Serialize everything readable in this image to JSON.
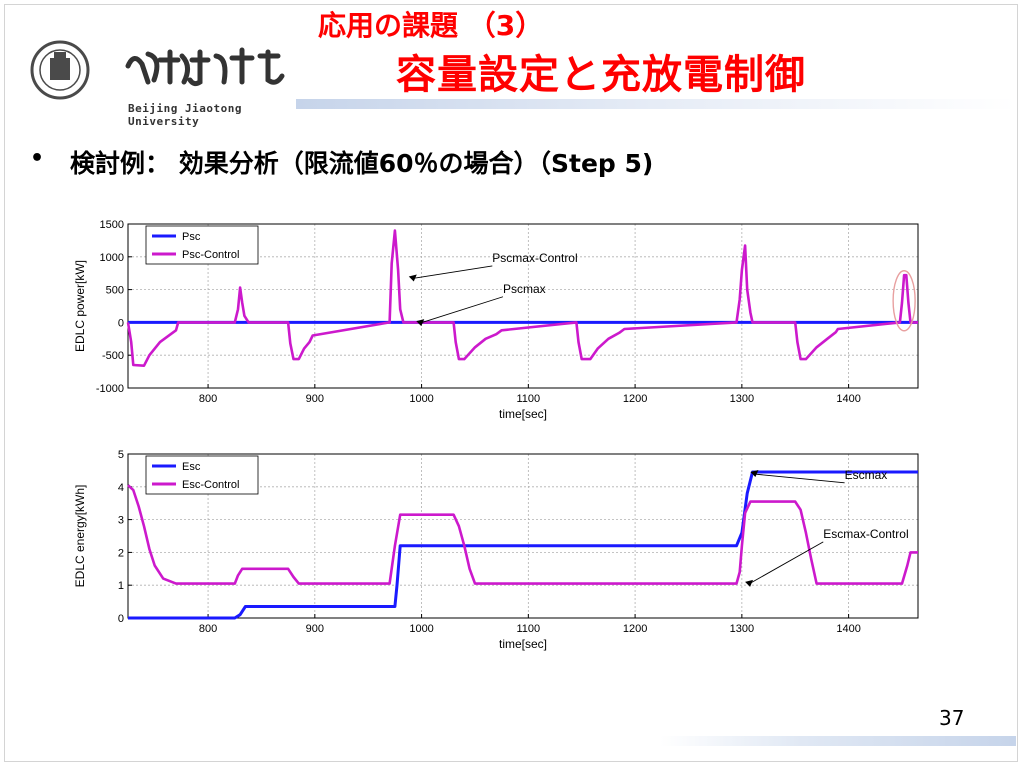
{
  "slide": {
    "title_line1": "応用の課題 （3）",
    "title_line2": "容量設定と充放電制御",
    "university_en": "Beijing Jiaotong University",
    "bullet_symbol": "•",
    "bullet_text": "検討例： 効果分析（限流値60％の場合）（Step 5)",
    "page_number": "37"
  },
  "colors": {
    "title": "#ff0000",
    "series_blue": "#1a1aff",
    "series_magenta": "#cc19cc",
    "highlight_ellipse": "#e8a0a0"
  },
  "icons": {
    "logo": "beijing-jiaotong-university-logo"
  },
  "chart_data": [
    {
      "type": "line",
      "xlabel": "time[sec]",
      "ylabel": "EDLC power[kW]",
      "xlim": [
        725,
        1465
      ],
      "ylim": [
        -1000,
        1500
      ],
      "xticks": [
        800,
        900,
        1000,
        1100,
        1200,
        1300,
        1400
      ],
      "yticks": [
        -1000,
        -500,
        0,
        500,
        1000,
        1500
      ],
      "grid": true,
      "legend_position": "top-left",
      "annotations": [
        {
          "text": "Pscmax-Control",
          "x": 1070,
          "y": 800
        },
        {
          "text": "Pscmax",
          "x": 1080,
          "y": 330
        }
      ],
      "series": [
        {
          "name": "Psc",
          "color": "#1a1aff",
          "x": [
            725,
            770,
            770,
            875,
            875,
            900,
            900,
            1030,
            1030,
            1080,
            1080,
            1140,
            1140,
            1195,
            1195,
            1350,
            1350,
            1395,
            1395,
            1465
          ],
          "y": [
            0,
            0,
            0,
            0,
            0,
            0,
            0,
            0,
            0,
            0,
            0,
            0,
            0,
            0,
            0,
            0,
            0,
            0,
            0,
            0
          ]
        },
        {
          "name": "Psc-Control",
          "color": "#cc19cc",
          "x": [
            725,
            728,
            730,
            740,
            745,
            755,
            765,
            770,
            772,
            825,
            828,
            830,
            832,
            834,
            838,
            875,
            877,
            880,
            885,
            890,
            895,
            898,
            970,
            972,
            975,
            978,
            980,
            983,
            985,
            1030,
            1032,
            1035,
            1040,
            1050,
            1060,
            1070,
            1075,
            1145,
            1147,
            1150,
            1158,
            1165,
            1175,
            1185,
            1190,
            1295,
            1298,
            1300,
            1303,
            1305,
            1308,
            1310,
            1350,
            1352,
            1355,
            1360,
            1370,
            1380,
            1388,
            1390,
            1448,
            1450,
            1452,
            1454,
            1456,
            1458,
            1465
          ],
          "y": [
            0,
            -300,
            -650,
            -660,
            -500,
            -300,
            -180,
            -120,
            0,
            0,
            200,
            530,
            300,
            100,
            0,
            0,
            -320,
            -560,
            -560,
            -400,
            -300,
            -200,
            0,
            900,
            1400,
            800,
            200,
            0,
            0,
            0,
            -300,
            -560,
            -560,
            -380,
            -250,
            -180,
            -120,
            0,
            -300,
            -560,
            -560,
            -400,
            -250,
            -160,
            -100,
            0,
            350,
            800,
            1170,
            500,
            150,
            0,
            0,
            -300,
            -560,
            -560,
            -380,
            -250,
            -150,
            -100,
            0,
            300,
            720,
            720,
            300,
            0,
            0
          ]
        }
      ]
    },
    {
      "type": "line",
      "xlabel": "time[sec]",
      "ylabel": "EDLC energy[kWh]",
      "xlim": [
        725,
        1465
      ],
      "ylim": [
        0,
        5
      ],
      "xticks": [
        800,
        900,
        1000,
        1100,
        1200,
        1300,
        1400
      ],
      "yticks": [
        0,
        1,
        2,
        3,
        4,
        5
      ],
      "grid": true,
      "legend_position": "top-left",
      "annotations": [
        {
          "text": "Escmax",
          "x": 1400,
          "y": 4.0
        },
        {
          "text": "Escmax-Control",
          "x": 1380,
          "y": 2.2
        }
      ],
      "series": [
        {
          "name": "Esc",
          "color": "#1a1aff",
          "x": [
            725,
            825,
            830,
            835,
            975,
            977,
            980,
            1295,
            1300,
            1305,
            1310,
            1465
          ],
          "y": [
            0,
            0,
            0.1,
            0.35,
            0.35,
            1.0,
            2.2,
            2.2,
            2.6,
            3.8,
            4.45,
            4.45
          ]
        },
        {
          "name": "Esc-Control",
          "color": "#cc19cc",
          "x": [
            725,
            730,
            735,
            740,
            745,
            750,
            758,
            770,
            825,
            828,
            832,
            875,
            880,
            885,
            970,
            975,
            980,
            1030,
            1035,
            1040,
            1045,
            1050,
            1295,
            1298,
            1300,
            1303,
            1308,
            1350,
            1355,
            1360,
            1365,
            1370,
            1450,
            1455,
            1458,
            1465
          ],
          "y": [
            4.05,
            3.9,
            3.4,
            2.8,
            2.1,
            1.6,
            1.2,
            1.05,
            1.05,
            1.3,
            1.5,
            1.5,
            1.25,
            1.05,
            1.05,
            2.2,
            3.15,
            3.15,
            2.8,
            2.2,
            1.5,
            1.05,
            1.05,
            1.4,
            2.2,
            3.2,
            3.55,
            3.55,
            3.3,
            2.6,
            1.8,
            1.05,
            1.05,
            1.6,
            2.0,
            2.0
          ]
        }
      ]
    }
  ]
}
